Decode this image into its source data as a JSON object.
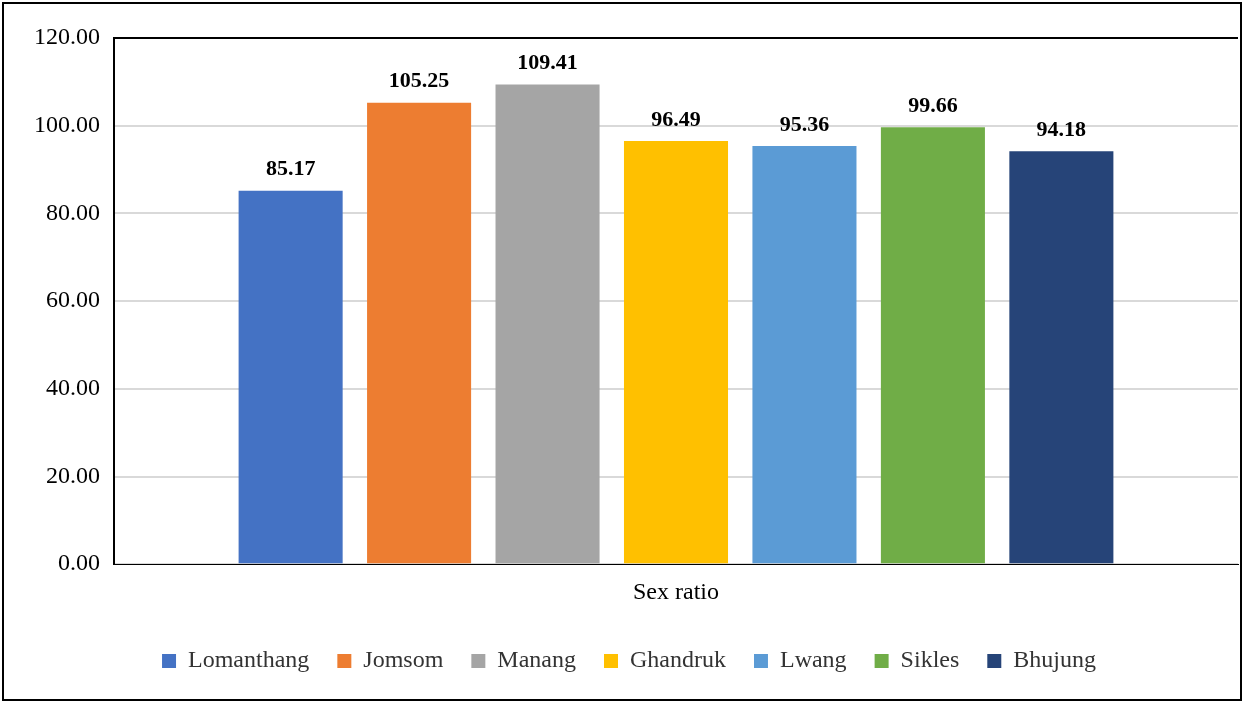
{
  "chart_data": {
    "type": "bar",
    "categories": [
      "Sex ratio"
    ],
    "series": [
      {
        "name": "Lomanthang",
        "color": "#4472c4",
        "values": [
          85.17
        ]
      },
      {
        "name": "Jomsom",
        "color": "#ed7d31",
        "values": [
          105.25
        ]
      },
      {
        "name": "Manang",
        "color": "#a5a5a5",
        "values": [
          109.41
        ]
      },
      {
        "name": "Ghandruk",
        "color": "#ffc000",
        "values": [
          96.49
        ]
      },
      {
        "name": "Lwang",
        "color": "#5b9bd5",
        "values": [
          95.36
        ]
      },
      {
        "name": "Sikles",
        "color": "#70ad47",
        "values": [
          99.66
        ]
      },
      {
        "name": "Bhujung",
        "color": "#264478",
        "values": [
          94.18
        ]
      }
    ],
    "ylim": [
      0,
      120
    ],
    "yticks": [
      {
        "value": 0,
        "label": "0.00"
      },
      {
        "value": 20,
        "label": "20.00"
      },
      {
        "value": 40,
        "label": "40.00"
      },
      {
        "value": 60,
        "label": "60.00"
      },
      {
        "value": 80,
        "label": "80.00"
      },
      {
        "value": 100,
        "label": "100.00"
      },
      {
        "value": 120,
        "label": "120.00"
      }
    ],
    "grid": "y",
    "legend": "bottom",
    "data_labels": true
  }
}
